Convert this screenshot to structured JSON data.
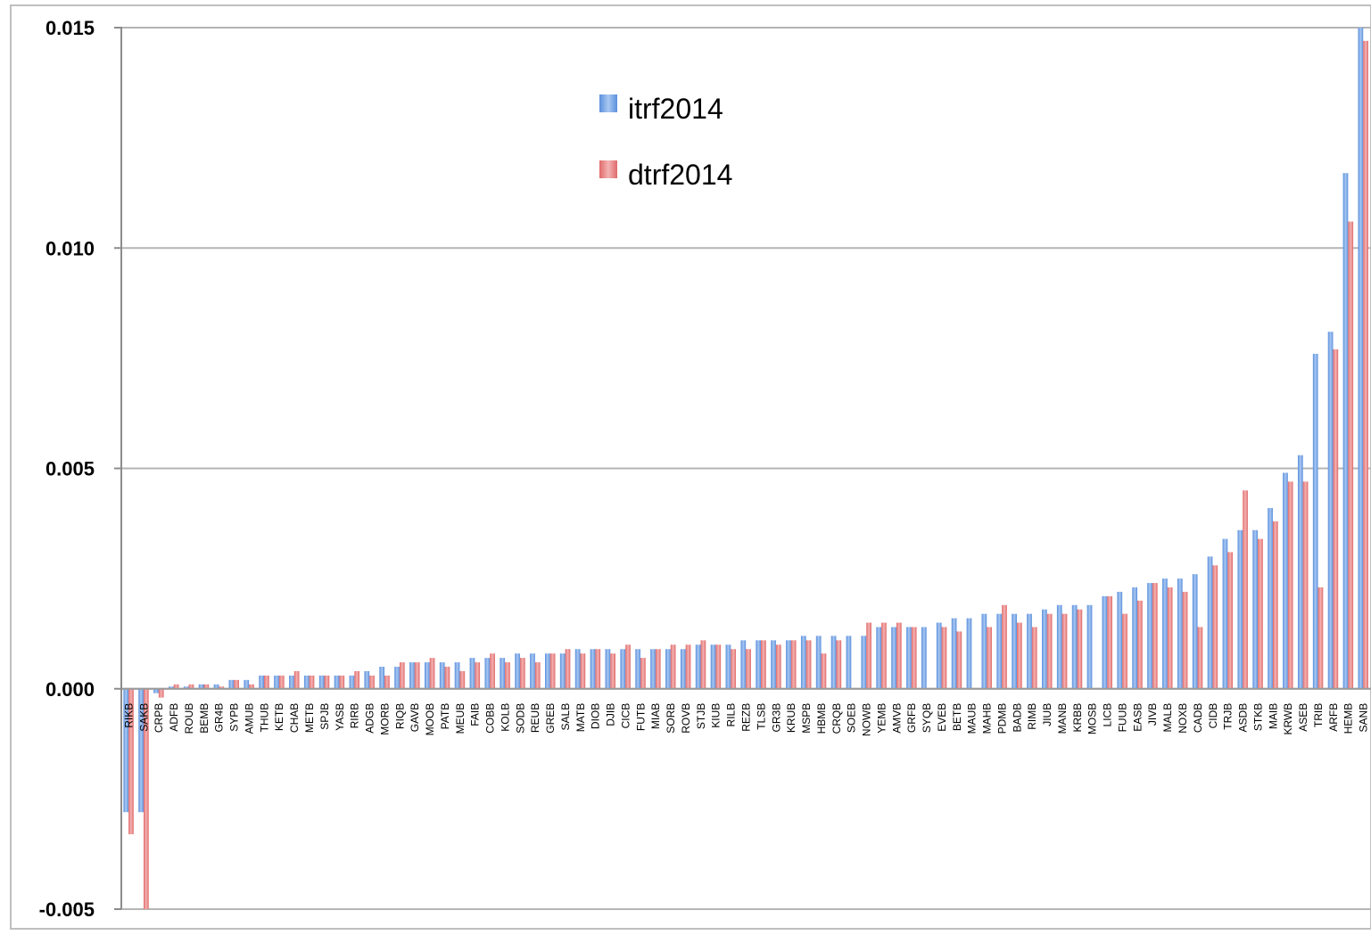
{
  "chart_data": {
    "type": "bar",
    "title": "",
    "xlabel": "",
    "ylabel": "",
    "ylim": [
      -0.005,
      0.015
    ],
    "yticks": [
      "0.015",
      "0.010",
      "0.005",
      "0.000",
      "-0.005"
    ],
    "grid": true,
    "legend_position": "top-center",
    "categories": [
      "RIKB",
      "SAKB",
      "CRPB",
      "ADFB",
      "ROUB",
      "BEMB",
      "GR4B",
      "SYPB",
      "AMUB",
      "THUB",
      "KETB",
      "CHAB",
      "METB",
      "SPJB",
      "YASB",
      "RIRB",
      "ADGB",
      "MORB",
      "RIQB",
      "GAVB",
      "MOOB",
      "PATB",
      "MEUB",
      "FAIB",
      "COBB",
      "KOLB",
      "SODB",
      "REUB",
      "GREB",
      "SALB",
      "MATB",
      "DIOB",
      "DJIB",
      "CICB",
      "FUTB",
      "MIAB",
      "SORB",
      "ROVB",
      "STJB",
      "KIUB",
      "RILB",
      "REZB",
      "TLSB",
      "GR3B",
      "KRUB",
      "MSPB",
      "HBMB",
      "CRQB",
      "SOEB",
      "NOWB",
      "YEMB",
      "AMVB",
      "GRFB",
      "SYQB",
      "EVEB",
      "BETB",
      "MAUB",
      "MAHB",
      "PDMB",
      "BADB",
      "RIMB",
      "JIUB",
      "MANB",
      "KRBB",
      "MOSB",
      "LICB",
      "FUUB",
      "EASB",
      "JIVB",
      "MALB",
      "NOXB",
      "CADB",
      "CIDB",
      "TRJB",
      "ASDB",
      "STKB",
      "MAIB",
      "KRWB",
      "ASEB",
      "TRIB",
      "ARFB",
      "HEMB",
      "SANB"
    ],
    "series": [
      {
        "name": "itrf2014",
        "color": "#7aa8e6",
        "values": [
          -0.0028,
          -0.0028,
          -0.0001,
          5e-05,
          5e-05,
          0.0001,
          0.0001,
          0.0002,
          0.0002,
          0.0003,
          0.0003,
          0.0003,
          0.0003,
          0.0003,
          0.0003,
          0.0003,
          0.0004,
          0.0005,
          0.0005,
          0.0006,
          0.0006,
          0.0006,
          0.0006,
          0.0007,
          0.0007,
          0.0007,
          0.0008,
          0.0008,
          0.0008,
          0.0008,
          0.0009,
          0.0009,
          0.0009,
          0.0009,
          0.0009,
          0.0009,
          0.0009,
          0.0009,
          0.001,
          0.001,
          0.001,
          0.0011,
          0.0011,
          0.0011,
          0.0011,
          0.0012,
          0.0012,
          0.0012,
          0.0012,
          0.0012,
          0.0014,
          0.0014,
          0.0014,
          0.0014,
          0.0015,
          0.0016,
          0.0016,
          0.0017,
          0.0017,
          0.0017,
          0.0017,
          0.0018,
          0.0019,
          0.0019,
          0.0019,
          0.0021,
          0.0022,
          0.0023,
          0.0024,
          0.0025,
          0.0025,
          0.0026,
          0.003,
          0.0034,
          0.0036,
          0.0036,
          0.0041,
          0.0049,
          0.0053,
          0.0076,
          0.0081,
          0.0117,
          0.015
        ]
      },
      {
        "name": "dtrf2014",
        "color": "#e98585",
        "values": [
          -0.0033,
          -0.0055,
          -0.0002,
          0.0001,
          0.0001,
          0.0001,
          5e-05,
          0.0002,
          0.0001,
          0.0003,
          0.0003,
          0.0004,
          0.0003,
          0.0003,
          0.0003,
          0.0004,
          0.0003,
          0.0003,
          0.0006,
          0.0006,
          0.0007,
          0.0005,
          0.0004,
          0.0006,
          0.0008,
          0.0006,
          0.0007,
          0.0006,
          0.0008,
          0.0009,
          0.0008,
          0.0009,
          0.0008,
          0.001,
          0.0007,
          0.0009,
          0.001,
          0.001,
          0.0011,
          0.001,
          0.0009,
          0.0009,
          0.0011,
          0.001,
          0.0011,
          0.0011,
          0.0008,
          0.0011,
          0.0,
          0.0015,
          0.0015,
          0.0015,
          0.0014,
          0.0,
          0.0014,
          0.0013,
          0.0,
          0.0014,
          0.0019,
          0.0015,
          0.0014,
          0.0017,
          0.0017,
          0.0018,
          0.0,
          0.0021,
          0.0017,
          0.002,
          0.0024,
          0.0023,
          0.0022,
          0.0014,
          0.0028,
          0.0031,
          0.0045,
          0.0034,
          0.0038,
          0.0047,
          0.0047,
          0.0023,
          0.0077,
          0.0106,
          0.0147
        ]
      }
    ]
  }
}
